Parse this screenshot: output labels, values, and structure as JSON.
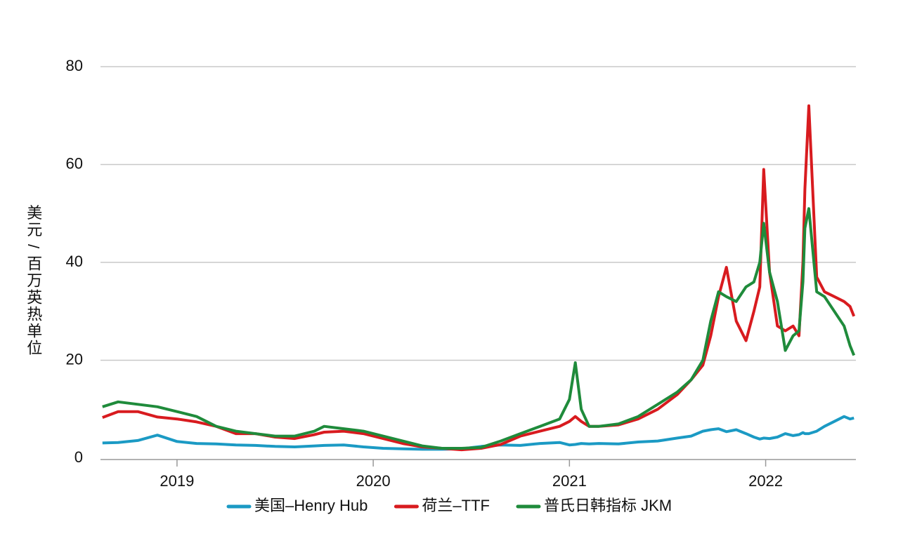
{
  "chart_data": {
    "type": "line",
    "ylabel": "美元 / 百万英热单位",
    "x": [
      2018.62,
      2018.7,
      2018.8,
      2018.9,
      2019.0,
      2019.1,
      2019.2,
      2019.3,
      2019.4,
      2019.5,
      2019.6,
      2019.7,
      2019.75,
      2019.85,
      2019.95,
      2020.05,
      2020.15,
      2020.25,
      2020.35,
      2020.45,
      2020.55,
      2020.65,
      2020.75,
      2020.85,
      2020.95,
      2021.0,
      2021.03,
      2021.06,
      2021.1,
      2021.15,
      2021.25,
      2021.35,
      2021.45,
      2021.55,
      2021.62,
      2021.68,
      2021.72,
      2021.76,
      2021.8,
      2021.85,
      2021.9,
      2021.94,
      2021.97,
      2021.99,
      2022.02,
      2022.06,
      2022.1,
      2022.14,
      2022.17,
      2022.19,
      2022.2,
      2022.22,
      2022.26,
      2022.3,
      2022.35,
      2022.4,
      2022.43,
      2022.45
    ],
    "series": [
      {
        "name": "美国–Henry Hub",
        "color": "#1b9ac4",
        "values": [
          3.1,
          3.2,
          3.6,
          4.7,
          3.4,
          3.0,
          2.9,
          2.7,
          2.6,
          2.4,
          2.3,
          2.5,
          2.6,
          2.7,
          2.3,
          2.0,
          1.9,
          1.8,
          1.8,
          1.9,
          2.4,
          2.7,
          2.6,
          3.0,
          3.2,
          2.7,
          2.8,
          3.0,
          2.9,
          3.0,
          2.9,
          3.3,
          3.5,
          4.1,
          4.5,
          5.5,
          5.8,
          6.0,
          5.4,
          5.8,
          5.0,
          4.3,
          3.9,
          4.1,
          4.0,
          4.3,
          5.0,
          4.6,
          4.8,
          5.2,
          5.0,
          5.0,
          5.5,
          6.5,
          7.5,
          8.5,
          8.0,
          8.2
        ]
      },
      {
        "name": "荷兰–TTF",
        "color": "#d81b1f",
        "values": [
          8.3,
          9.5,
          9.5,
          8.4,
          8.0,
          7.4,
          6.5,
          5.0,
          5.0,
          4.3,
          4.0,
          4.8,
          5.3,
          5.5,
          5.0,
          4.0,
          3.0,
          2.3,
          2.0,
          1.7,
          2.0,
          2.8,
          4.5,
          5.5,
          6.5,
          7.5,
          8.5,
          7.5,
          6.5,
          6.5,
          6.8,
          8.0,
          10.0,
          13.0,
          16.0,
          19.0,
          25.0,
          33.0,
          39.0,
          28.0,
          24.0,
          30.0,
          35.0,
          59.0,
          38.0,
          27.0,
          26.0,
          27.0,
          25.0,
          40.0,
          55.0,
          72.0,
          37.0,
          34.0,
          33.0,
          32.0,
          31.0,
          29.0
        ]
      },
      {
        "name": "普氏日韩指标 JKM",
        "color": "#1f8b3b",
        "values": [
          10.5,
          11.5,
          11.0,
          10.5,
          9.5,
          8.5,
          6.5,
          5.5,
          5.0,
          4.5,
          4.5,
          5.5,
          6.5,
          6.0,
          5.5,
          4.5,
          3.5,
          2.5,
          2.0,
          2.0,
          2.2,
          3.5,
          5.0,
          6.5,
          8.0,
          12.0,
          19.5,
          10.0,
          6.5,
          6.5,
          7.0,
          8.5,
          11.0,
          13.5,
          16.0,
          20.0,
          28.0,
          34.0,
          33.0,
          32.0,
          35.0,
          36.0,
          40.0,
          48.0,
          38.0,
          32.0,
          22.0,
          25.0,
          26.0,
          36.0,
          47.0,
          51.0,
          34.0,
          33.0,
          30.0,
          27.0,
          23.0,
          21.0
        ]
      }
    ],
    "xlim": [
      2018.61,
      2022.46
    ],
    "xticks": [
      2019,
      2020,
      2021,
      2022
    ],
    "ylim": [
      0,
      80
    ],
    "yticks": [
      0,
      20,
      40,
      60,
      80
    ],
    "grid": true,
    "legend": "bottom"
  }
}
